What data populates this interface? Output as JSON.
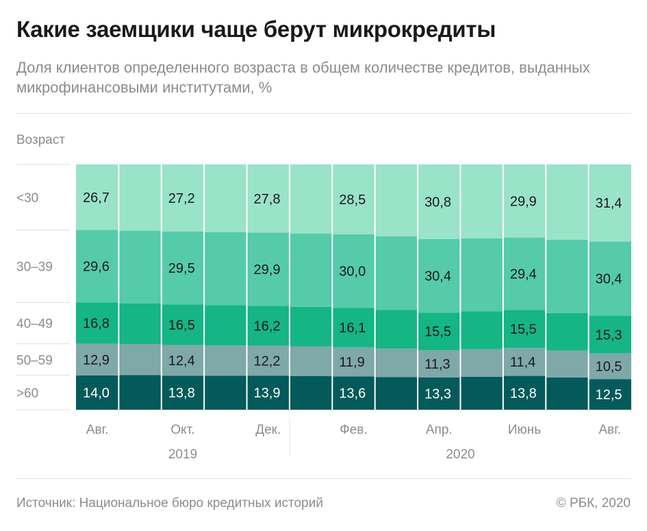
{
  "title": "Какие заемщики чаще берут микрокредиты",
  "subtitle": "Доля клиентов определенного возраста в общем количестве кредитов, выданных микрофинансовыми институтами, %",
  "source": "Источник: Национальное бюро кредитных историй",
  "copyright": "© РБК, 2020",
  "chart_data": {
    "type": "bar",
    "stacked": true,
    "normalized": true,
    "ylabel": "Возраст",
    "categories": [
      "Авг. 2019",
      "Сен. 2019",
      "Окт. 2019",
      "Ноя. 2019",
      "Дек. 2019",
      "Янв. 2020",
      "Фев. 2020",
      "Мар. 2020",
      "Апр. 2020",
      "Май 2020",
      "Июнь 2020",
      "Июль 2020",
      "Авг. 2020"
    ],
    "x_tick_labels": [
      {
        "index": 0,
        "label": "Авг."
      },
      {
        "index": 2,
        "label": "Окт."
      },
      {
        "index": 4,
        "label": "Дек."
      },
      {
        "index": 6,
        "label": "Фев."
      },
      {
        "index": 8,
        "label": "Апр."
      },
      {
        "index": 10,
        "label": "Июнь"
      },
      {
        "index": 12,
        "label": "Авг."
      }
    ],
    "year_labels": [
      {
        "label": "2019",
        "from": 0,
        "to": 4
      },
      {
        "label": "2020",
        "from": 5,
        "to": 12
      }
    ],
    "year_divider_after_index": 4,
    "series": [
      {
        "name": ">60",
        "color": "#045a5a",
        "label_color": "#ffffff",
        "values": [
          14.0,
          14.1,
          13.8,
          13.8,
          13.9,
          13.8,
          13.6,
          13.4,
          13.3,
          13.5,
          13.8,
          13.2,
          12.5
        ],
        "labels": [
          "14,0",
          null,
          "13,8",
          null,
          "13,9",
          null,
          "13,6",
          null,
          "13,3",
          null,
          "13,8",
          null,
          "12,5"
        ]
      },
      {
        "name": "50–59",
        "color": "#7fa8a9",
        "label_color": "#1a1a1a",
        "values": [
          12.9,
          12.6,
          12.4,
          12.3,
          12.2,
          12.1,
          11.9,
          11.6,
          11.3,
          11.3,
          11.4,
          11.0,
          10.5
        ],
        "labels": [
          "12,9",
          null,
          "12,4",
          null,
          "12,2",
          null,
          "11,9",
          null,
          "11,3",
          null,
          "11,4",
          null,
          "10,5"
        ]
      },
      {
        "name": "40–49",
        "color": "#15b585",
        "label_color": "#1a1a1a",
        "values": [
          16.8,
          16.7,
          16.5,
          16.4,
          16.2,
          16.2,
          16.1,
          15.8,
          15.5,
          15.5,
          15.5,
          15.4,
          15.3
        ],
        "labels": [
          "16,8",
          null,
          "16,5",
          null,
          "16,2",
          null,
          "16,1",
          null,
          "15,5",
          null,
          "15,5",
          null,
          "15,3"
        ]
      },
      {
        "name": "30–39",
        "color": "#55cba9",
        "label_color": "#1a1a1a",
        "values": [
          29.6,
          29.6,
          29.5,
          29.7,
          29.9,
          30.0,
          30.0,
          30.2,
          30.4,
          29.9,
          29.4,
          30.0,
          30.4
        ],
        "labels": [
          "29,6",
          null,
          "29,5",
          null,
          "29,9",
          null,
          "30,0",
          null,
          "30,4",
          null,
          "29,4",
          null,
          "30,4"
        ]
      },
      {
        "name": "<30",
        "color": "#99e3c9",
        "label_color": "#1a1a1a",
        "values": [
          26.7,
          27.0,
          27.2,
          27.5,
          27.8,
          28.2,
          28.5,
          29.4,
          30.8,
          30.3,
          29.9,
          30.8,
          31.4
        ],
        "labels": [
          "26,7",
          null,
          "27,2",
          null,
          "27,8",
          null,
          "28,5",
          null,
          "30,8",
          null,
          "29,9",
          null,
          "31,4"
        ]
      }
    ]
  }
}
